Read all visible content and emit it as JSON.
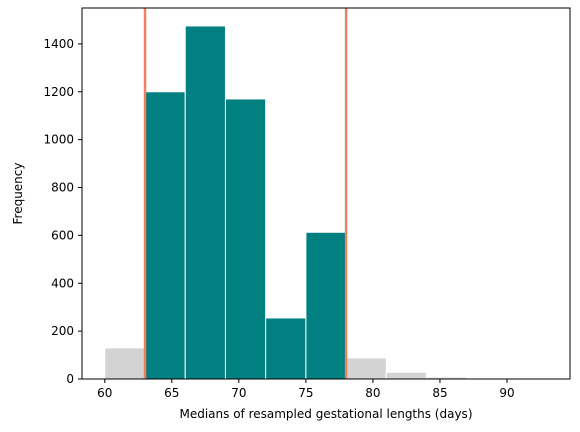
{
  "chart_data": {
    "type": "bar",
    "subtype": "histogram",
    "title": "",
    "xlabel": "Medians of resampled gestational lengths (days)",
    "ylabel": "Frequency",
    "xlim": [
      58.3,
      94.7
    ],
    "ylim": [
      0,
      1550
    ],
    "xticks": [
      60,
      65,
      70,
      75,
      80,
      85,
      90
    ],
    "yticks": [
      0,
      200,
      400,
      600,
      800,
      1000,
      1200,
      1400
    ],
    "grid": false,
    "legend": "none",
    "bins": [
      {
        "start": 60,
        "end": 63,
        "value": 130,
        "highlight": false
      },
      {
        "start": 63,
        "end": 66,
        "value": 1200,
        "highlight": true
      },
      {
        "start": 66,
        "end": 69,
        "value": 1475,
        "highlight": true
      },
      {
        "start": 69,
        "end": 72,
        "value": 1170,
        "highlight": true
      },
      {
        "start": 72,
        "end": 75,
        "value": 255,
        "highlight": true
      },
      {
        "start": 75,
        "end": 78,
        "value": 613,
        "highlight": true
      },
      {
        "start": 78,
        "end": 81,
        "value": 88,
        "highlight": false
      },
      {
        "start": 81,
        "end": 84,
        "value": 28,
        "highlight": false
      },
      {
        "start": 84,
        "end": 87,
        "value": 8,
        "highlight": false
      },
      {
        "start": 87,
        "end": 90,
        "value": 2,
        "highlight": false
      },
      {
        "start": 90,
        "end": 93,
        "value": 1,
        "highlight": false
      }
    ],
    "interval_lines": [
      63,
      78
    ],
    "colors": {
      "highlight": "#008080",
      "other": "#d3d3d3",
      "interval_line": "#f08060",
      "bar_edge": "#ffffff"
    }
  }
}
